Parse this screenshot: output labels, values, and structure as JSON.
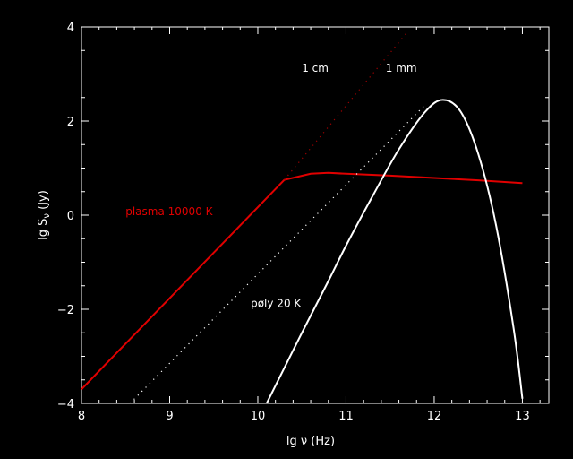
{
  "chart_data": {
    "type": "line",
    "xlabel": "lg ν (Hz)",
    "ylabel": "lg S",
    "ylabel_sub": "ν",
    "ylabel_unit": " (Jy)",
    "xlim": [
      8,
      13.3
    ],
    "ylim": [
      -4,
      4
    ],
    "x_ticks": [
      8,
      9,
      10,
      11,
      12,
      13
    ],
    "y_ticks": [
      -4,
      -2,
      0,
      2,
      4
    ],
    "x_tick_labels": [
      "8",
      "9",
      "10",
      "11",
      "12",
      "13"
    ],
    "y_tick_labels": [
      "−4",
      "−2",
      "0",
      "2",
      "4"
    ],
    "grid": false,
    "colors": {
      "plasma": "#e00000",
      "dust": "#ffffff",
      "plasma_extrap": "#a00000",
      "dust_extrap": "#ffffff"
    },
    "series": [
      {
        "key": "plasma",
        "style": "solid",
        "x": [
          8.0,
          10.3,
          10.6,
          10.8,
          11.0,
          11.5,
          12.0,
          12.5,
          13.0
        ],
        "y": [
          -3.7,
          0.75,
          0.88,
          0.9,
          0.88,
          0.84,
          0.79,
          0.74,
          0.68
        ]
      },
      {
        "key": "plasma_extrap",
        "style": "dotted",
        "x": [
          10.3,
          11.7
        ],
        "y": [
          0.75,
          3.9
        ]
      },
      {
        "key": "dust",
        "style": "solid",
        "x": [
          10.1,
          10.5,
          10.8,
          11.0,
          11.3,
          11.6,
          11.9,
          12.1,
          12.3,
          12.5,
          12.7,
          12.9,
          13.0
        ],
        "y": [
          -4.0,
          -2.5,
          -1.4,
          -0.65,
          0.4,
          1.4,
          2.2,
          2.45,
          2.2,
          1.3,
          -0.2,
          -2.4,
          -3.9
        ]
      },
      {
        "key": "dust_extrap",
        "style": "dotted",
        "x": [
          8.55,
          11.9
        ],
        "y": [
          -4.0,
          2.35
        ]
      }
    ],
    "annotations": [
      {
        "text": "1 cm",
        "x": 10.5,
        "y": 3.05,
        "color": "#ffffff"
      },
      {
        "text": "1 mm",
        "x": 11.45,
        "y": 3.05,
        "color": "#ffffff"
      },
      {
        "text": "plasma 10000 K",
        "x": 8.5,
        "y": 0.0,
        "color": "#e00000"
      },
      {
        "text": "pøly 20 K",
        "x": 9.92,
        "y": -1.95,
        "color": "#ffffff"
      }
    ]
  }
}
